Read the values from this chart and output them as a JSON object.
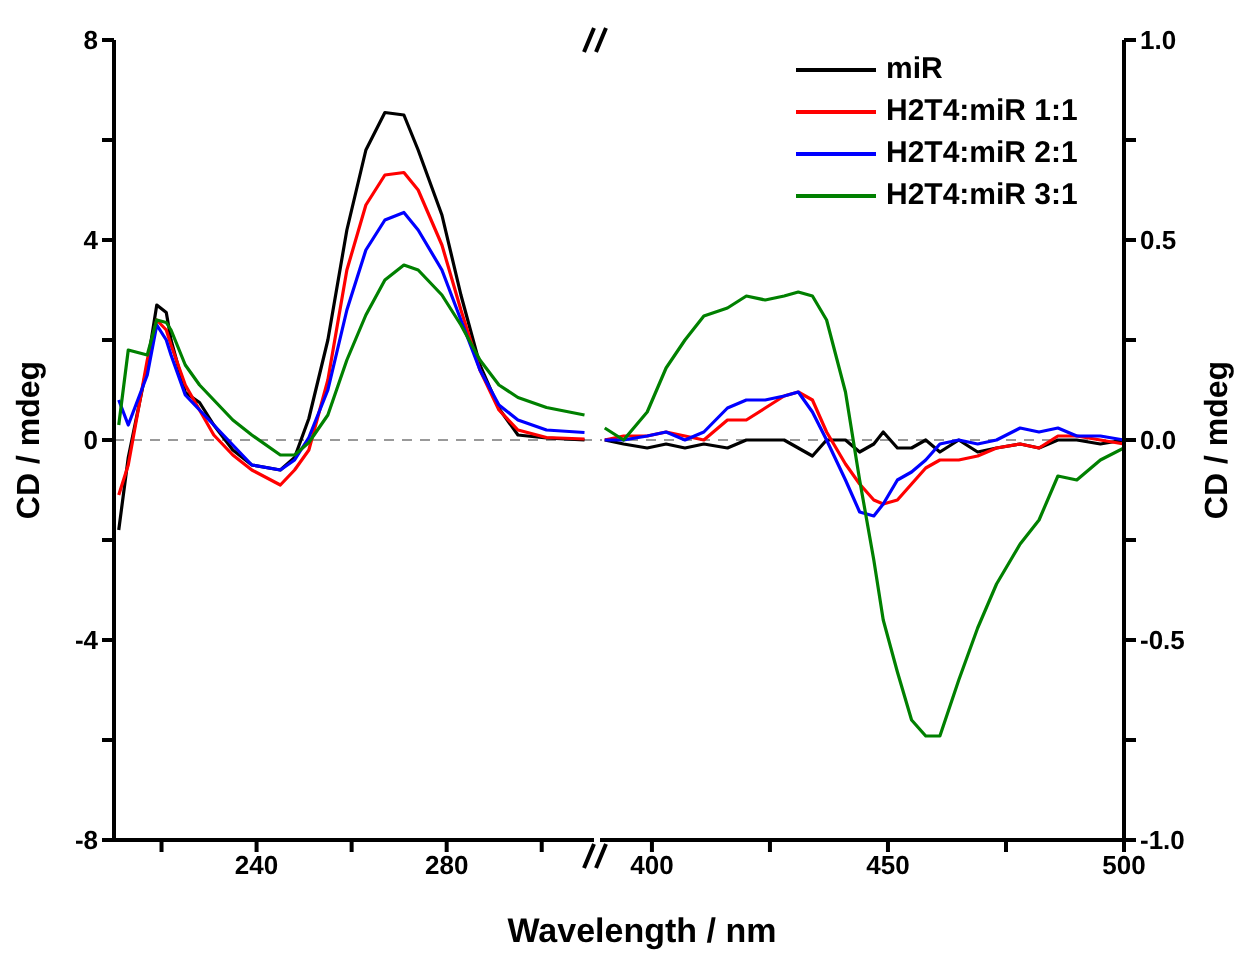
{
  "chart_data": [
    {
      "type": "line",
      "xlabel": "Wavelength / nm",
      "ylabel": "CD / mdeg",
      "xlim": [
        210,
        311
      ],
      "xticks": [
        {
          "value": 220,
          "label": null
        },
        240,
        {
          "value": 260,
          "label": null
        },
        280,
        {
          "value": 300,
          "label": null
        }
      ],
      "ylim": [
        -8,
        8
      ],
      "yticks": [
        -8,
        {
          "value": -6,
          "label": null
        },
        -4,
        {
          "value": -2,
          "label": null
        },
        0,
        {
          "value": 2,
          "label": null
        },
        4,
        {
          "value": 6,
          "label": null
        },
        8
      ],
      "grid": false,
      "legend": false,
      "x": [
        211,
        213,
        217,
        219,
        221,
        222,
        225,
        228,
        231,
        235,
        239,
        245,
        248,
        251,
        255,
        259,
        263,
        267,
        271,
        274,
        279,
        283,
        287,
        291,
        295,
        301,
        309
      ],
      "ref_lines": [
        {
          "axis": "y",
          "value": 0,
          "color": "#999999",
          "line_style": "dashed"
        }
      ],
      "series": [
        {
          "color": "#000000",
          "values": [
            -1.8,
            -0.35,
            1.5,
            2.7,
            2.55,
            2.0,
            0.95,
            0.75,
            0.3,
            -0.2,
            -0.5,
            -0.6,
            -0.35,
            0.43,
            2.0,
            4.2,
            5.8,
            6.55,
            6.5,
            5.8,
            4.5,
            2.9,
            1.5,
            0.63,
            0.1,
            0.04,
            0
          ]
        },
        {
          "color": "#ff0000",
          "values": [
            -1.1,
            -0.5,
            1.6,
            2.4,
            2.2,
            1.9,
            1.1,
            0.6,
            0.1,
            -0.3,
            -0.6,
            -0.9,
            -0.6,
            -0.2,
            1.2,
            3.4,
            4.7,
            5.3,
            5.35,
            5.0,
            3.9,
            2.6,
            1.4,
            0.6,
            0.2,
            0.05,
            0.02
          ]
        },
        {
          "color": "#0000ff",
          "values": [
            0.8,
            0.3,
            1.3,
            2.3,
            2.0,
            1.7,
            0.9,
            0.6,
            0.3,
            -0.1,
            -0.5,
            -0.6,
            -0.4,
            0.05,
            1.0,
            2.6,
            3.8,
            4.4,
            4.55,
            4.2,
            3.4,
            2.4,
            1.4,
            0.7,
            0.4,
            0.2,
            0.15
          ]
        },
        {
          "color": "#008000",
          "values": [
            0.3,
            1.8,
            1.7,
            2.4,
            2.35,
            2.2,
            1.5,
            1.1,
            0.8,
            0.4,
            0.1,
            -0.3,
            -0.3,
            -0.05,
            0.5,
            1.6,
            2.5,
            3.2,
            3.5,
            3.4,
            2.9,
            2.3,
            1.6,
            1.1,
            0.85,
            0.65,
            0.5
          ]
        }
      ]
    },
    {
      "type": "line",
      "y2label": "CD / mdeg",
      "xlim": [
        389,
        500
      ],
      "xticks": [
        400,
        {
          "value": 425,
          "label": null
        },
        450,
        {
          "value": 475,
          "label": null
        },
        500
      ],
      "y2lim": [
        -1,
        1
      ],
      "y2ticks": [
        {
          "value": -1,
          "label": "-1.0"
        },
        {
          "value": -0.75,
          "label": null
        },
        -0.5,
        {
          "value": -0.25,
          "label": null
        },
        {
          "value": 0,
          "label": "0.0"
        },
        {
          "value": 0.25,
          "label": null
        },
        0.5,
        {
          "value": 0.75,
          "label": null
        },
        {
          "value": 1,
          "label": "1.0"
        }
      ],
      "grid": false,
      "legend": "top right",
      "x": [
        390,
        394,
        399,
        403,
        407,
        411,
        416,
        420,
        424,
        428,
        431,
        434,
        437,
        441,
        444,
        447,
        449,
        452,
        455,
        458,
        461,
        465,
        469,
        473,
        478,
        482,
        486,
        490,
        495,
        500
      ],
      "ref_lines": [
        {
          "axis": "y2",
          "value": 0,
          "color": "#999999",
          "line_style": "dashed"
        }
      ],
      "series": [
        {
          "name": "miR",
          "axis": "y2",
          "color": "#000000",
          "values": [
            0,
            -0.01,
            -0.02,
            -0.01,
            -0.02,
            -0.01,
            -0.02,
            0,
            0,
            0,
            -0.02,
            -0.04,
            0,
            0,
            -0.03,
            -0.01,
            0.02,
            -0.02,
            -0.02,
            0,
            -0.03,
            0,
            -0.03,
            -0.02,
            -0.01,
            -0.02,
            0,
            0,
            -0.01,
            0
          ]
        },
        {
          "name": "H2T4:miR 1:1",
          "axis": "y2",
          "color": "#ff0000",
          "values": [
            0,
            0.01,
            0.01,
            0.02,
            0.01,
            0,
            0.05,
            0.05,
            0.08,
            0.11,
            0.12,
            0.1,
            0.02,
            -0.06,
            -0.11,
            -0.15,
            -0.16,
            -0.15,
            -0.11,
            -0.07,
            -0.05,
            -0.05,
            -0.04,
            -0.02,
            -0.01,
            -0.02,
            0.01,
            0.01,
            0,
            -0.01
          ]
        },
        {
          "name": "H2T4:miR 2:1",
          "axis": "y2",
          "color": "#0000ff",
          "values": [
            0,
            0,
            0.01,
            0.02,
            0,
            0.02,
            0.08,
            0.1,
            0.1,
            0.11,
            0.12,
            0.07,
            0,
            -0.1,
            -0.18,
            -0.19,
            -0.16,
            -0.1,
            -0.08,
            -0.05,
            -0.01,
            0,
            -0.01,
            0,
            0.03,
            0.02,
            0.03,
            0.01,
            0.01,
            0
          ]
        },
        {
          "name": "H2T4:miR 3:1",
          "axis": "y2",
          "color": "#008000",
          "values": [
            0.03,
            0,
            0.07,
            0.18,
            0.25,
            0.31,
            0.33,
            0.36,
            0.35,
            0.36,
            0.37,
            0.36,
            0.3,
            0.12,
            -0.1,
            -0.3,
            -0.45,
            -0.58,
            -0.7,
            -0.74,
            -0.74,
            -0.6,
            -0.47,
            -0.36,
            -0.26,
            -0.2,
            -0.09,
            -0.1,
            -0.05,
            -0.02
          ]
        }
      ]
    }
  ]
}
